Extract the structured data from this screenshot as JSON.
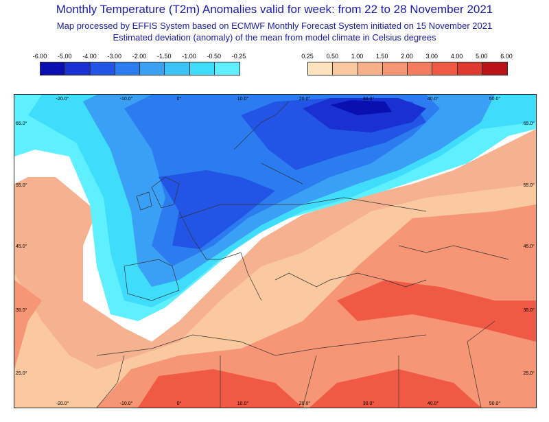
{
  "header": {
    "title": "Monthly Temperature (T2m) Anomalies valid for week: from 22 to 28 November 2021",
    "subtitle": "Map processed by EFFIS System based on ECMWF Monthly Forecast System initiated on 15 November 2021",
    "note": "Estimated deviation (anomaly) of the mean from model climate in Celsius degrees"
  },
  "legend_cold": {
    "ticks": [
      "-6.00",
      "-5.00",
      "-4.00",
      "-3.00",
      "-2.00",
      "-1.50",
      "-1.00",
      "-0.50",
      "-0.25"
    ],
    "colors": [
      "#0a0fb0",
      "#1a30d0",
      "#2255e6",
      "#2a7cf0",
      "#3aa0f5",
      "#3cc4f8",
      "#3fdcfb",
      "#5ff0ff"
    ]
  },
  "legend_warm": {
    "ticks": [
      "0.25",
      "0.50",
      "1.00",
      "1.50",
      "2.00",
      "3.00",
      "4.00",
      "5.00",
      "6.00"
    ],
    "colors": [
      "#fde3bd",
      "#fbc9a0",
      "#f8b08a",
      "#f69674",
      "#f47b5e",
      "#f05a44",
      "#de3a30",
      "#b81418"
    ]
  },
  "map": {
    "lon_labels": [
      "-20.0°",
      "-10.0°",
      "0°",
      "10.0°",
      "20.0°",
      "30.0°",
      "40.0°",
      "50.0°"
    ],
    "lat_labels": [
      "65.0°",
      "55.0°",
      "45.0°",
      "35.0°",
      "25.0°"
    ],
    "colors": {
      "ocean_warm": "#f6b290",
      "neutral": "#ffffff",
      "light_cyan": "#5ff0ff",
      "cyan": "#3fdcfb",
      "sky": "#3aa0f5",
      "blue": "#2a7cf0",
      "mid_blue": "#2255e6",
      "deep_blue": "#1a30d0",
      "darkest": "#0a0fb0",
      "warm_light": "#fbc9a0",
      "warm_mid": "#f69674",
      "warm_strong": "#f05a44",
      "warm_hot": "#de3a30",
      "border": "#333333"
    }
  }
}
